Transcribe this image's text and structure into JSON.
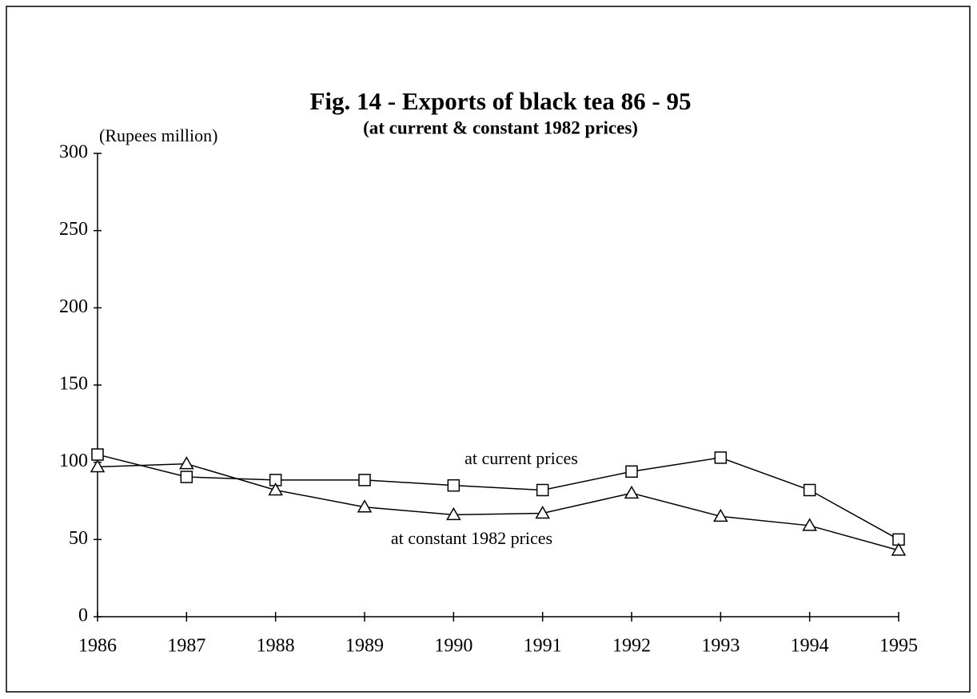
{
  "chart_data": {
    "type": "line",
    "title": "Fig. 14 - Exports of black tea 86 - 95",
    "subtitle": "(at current & constant 1982 prices)",
    "y_label": "(Rupees million)",
    "x": [
      1986,
      1987,
      1988,
      1989,
      1990,
      1991,
      1992,
      1993,
      1994,
      1995
    ],
    "xlim": [
      1986,
      1995
    ],
    "xticks": [
      1986,
      1987,
      1988,
      1989,
      1990,
      1991,
      1992,
      1993,
      1994,
      1995
    ],
    "ylim": [
      0,
      300
    ],
    "yticks": [
      0,
      50,
      100,
      150,
      200,
      250,
      300
    ],
    "grid": false,
    "series": [
      {
        "name": "at current prices",
        "color": "#000000",
        "marker": "square",
        "values": [
          105,
          90.5,
          88.5,
          88.5,
          85,
          82,
          94,
          103,
          82,
          50
        ]
      },
      {
        "name": "at constant 1982 prices",
        "color": "#000000",
        "marker": "triangle",
        "values": [
          97,
          99,
          82,
          71,
          66,
          67,
          80,
          65,
          59,
          43
        ]
      }
    ]
  }
}
